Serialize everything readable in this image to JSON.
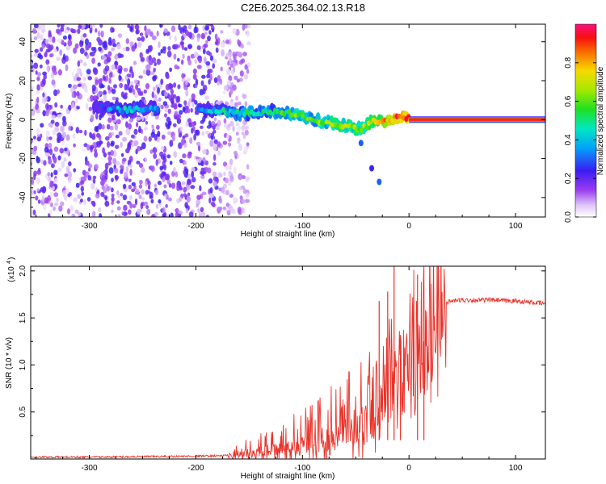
{
  "figure": {
    "title": "C2E6.2025.364.02.13.R18"
  },
  "chart_data": [
    {
      "type": "heatmap",
      "name": "spectrogram",
      "xlabel": "Height of straight line (km)",
      "ylabel": "Frequency (Hz)",
      "xlim": [
        -355,
        128
      ],
      "ylim": [
        -50,
        49
      ],
      "xticks": [
        -300,
        -200,
        -100,
        0,
        100
      ],
      "yticks": [
        -40,
        -20,
        0,
        20,
        40
      ],
      "colorbar": {
        "label": "Normalized spectral amplitude",
        "range": [
          0,
          1
        ],
        "ticks": [
          0.0,
          0.2,
          0.4,
          0.6,
          0.8
        ]
      },
      "signal_track": [
        {
          "x": -285,
          "f": 6,
          "amp": 0.3
        },
        {
          "x": -265,
          "f": 5,
          "amp": 0.42
        },
        {
          "x": -245,
          "f": 6,
          "amp": 0.38
        },
        {
          "x": -190,
          "f": 5,
          "amp": 0.4
        },
        {
          "x": -170,
          "f": 4,
          "amp": 0.45
        },
        {
          "x": -150,
          "f": 3,
          "amp": 0.5
        },
        {
          "x": -130,
          "f": 4,
          "amp": 0.48
        },
        {
          "x": -110,
          "f": 3,
          "amp": 0.55
        },
        {
          "x": -100,
          "f": 2,
          "amp": 0.6
        },
        {
          "x": -90,
          "f": 0,
          "amp": 0.55
        },
        {
          "x": -75,
          "f": -2,
          "amp": 0.6
        },
        {
          "x": -60,
          "f": -3,
          "amp": 0.65
        },
        {
          "x": -45,
          "f": -5,
          "amp": 0.62
        },
        {
          "x": -35,
          "f": -1,
          "amp": 0.7
        },
        {
          "x": -20,
          "f": 0,
          "amp": 0.8
        },
        {
          "x": -10,
          "f": 1,
          "amp": 0.9
        },
        {
          "x": 0,
          "f": 1,
          "amp": 0.95
        },
        {
          "x": 128,
          "f": 0,
          "amp": 1.0
        }
      ],
      "branch": [
        {
          "x": -45,
          "f": -12,
          "amp": 0.3
        },
        {
          "x": -35,
          "f": -25,
          "amp": 0.25
        },
        {
          "x": -28,
          "f": -32,
          "amp": 0.3
        }
      ],
      "noise_extent_x": [
        -355,
        -160
      ]
    },
    {
      "type": "line",
      "name": "snr",
      "xlabel": "Height of straight line (km)",
      "ylabel": "SNR (10 * v/v)",
      "yscale_label": "(x10",
      "yscale_exp": "4",
      "xlim": [
        -355,
        128
      ],
      "ylim": [
        0,
        2.05
      ],
      "xticks": [
        -300,
        -200,
        -100,
        0,
        100
      ],
      "yticks": [
        0.5,
        1.0,
        1.5,
        2.0
      ],
      "color": "#e8322a",
      "series": [
        {
          "name": "SNR",
          "x": [
            -355,
            -300,
            -250,
            -200,
            -175,
            -160,
            -150,
            -140,
            -130,
            -120,
            -110,
            -100,
            -90,
            -80,
            -70,
            -60,
            -50,
            -40,
            -35,
            -30,
            -25,
            -20,
            -15,
            -10,
            -5,
            0,
            5,
            10,
            15,
            20,
            25,
            30,
            35,
            40,
            50,
            60,
            70,
            80,
            90,
            100,
            110,
            120,
            128
          ],
          "y": [
            0.02,
            0.02,
            0.025,
            0.03,
            0.035,
            0.05,
            0.07,
            0.09,
            0.11,
            0.13,
            0.16,
            0.19,
            0.22,
            0.26,
            0.3,
            0.36,
            0.42,
            0.5,
            0.56,
            0.62,
            0.72,
            0.8,
            0.9,
            1.05,
            1.1,
            1.15,
            1.25,
            1.32,
            1.4,
            1.5,
            1.58,
            1.63,
            1.66,
            1.68,
            1.69,
            1.69,
            1.69,
            1.69,
            1.68,
            1.68,
            1.67,
            1.66,
            1.65
          ]
        }
      ],
      "spikes": [
        {
          "x": -28,
          "y": 1.68
        },
        {
          "x": -20,
          "y": 1.78
        },
        {
          "x": -14,
          "y": 2.05
        },
        {
          "x": -8,
          "y": 1.3
        },
        {
          "x": 8,
          "y": 1.96
        },
        {
          "x": 14,
          "y": 1.25
        }
      ]
    }
  ]
}
